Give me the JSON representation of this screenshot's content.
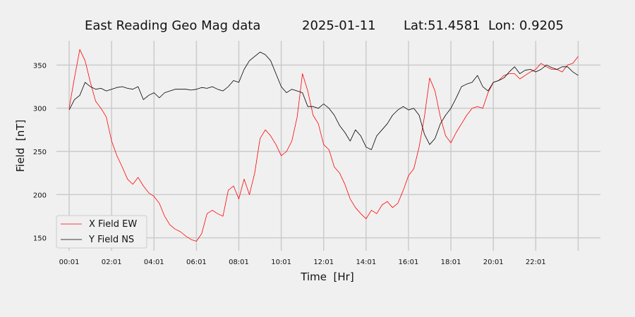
{
  "chart_data": {
    "type": "line",
    "title": "East Reading Geo Mag data",
    "date": "2025-01-11",
    "location": "Lat:51.4581  Lon: 0.9205",
    "xlabel": "Time  [Hr]",
    "ylabel": "Field  [nT]",
    "x_ticks": [
      {
        "label": "00:01",
        "hour": 0
      },
      {
        "label": "02:01",
        "hour": 2
      },
      {
        "label": "04:01",
        "hour": 4
      },
      {
        "label": "06:01",
        "hour": 6
      },
      {
        "label": "08:01",
        "hour": 8
      },
      {
        "label": "10:01",
        "hour": 10
      },
      {
        "label": "12:01",
        "hour": 12
      },
      {
        "label": "14:01",
        "hour": 14
      },
      {
        "label": "16:01",
        "hour": 16
      },
      {
        "label": "18:01",
        "hour": 18
      },
      {
        "label": "20:01",
        "hour": 20
      },
      {
        "label": "22:01",
        "hour": 22
      }
    ],
    "xlim": [
      -0.6,
      25.05
    ],
    "ylim": [
      135,
      378
    ],
    "y_ticks": [
      150,
      200,
      250,
      300,
      350
    ],
    "grid": true,
    "legend_position": "lower-left",
    "x_hours": [
      0,
      0.25,
      0.5,
      0.75,
      1,
      1.25,
      1.5,
      1.75,
      2,
      2.25,
      2.5,
      2.75,
      3,
      3.25,
      3.5,
      3.75,
      4,
      4.25,
      4.5,
      4.75,
      5,
      5.25,
      5.5,
      5.75,
      6,
      6.25,
      6.5,
      6.75,
      7,
      7.25,
      7.5,
      7.75,
      8,
      8.25,
      8.5,
      8.75,
      9,
      9.25,
      9.5,
      9.75,
      10,
      10.25,
      10.5,
      10.75,
      11,
      11.25,
      11.5,
      11.75,
      12,
      12.25,
      12.5,
      12.75,
      13,
      13.25,
      13.5,
      13.75,
      14,
      14.25,
      14.5,
      14.75,
      15,
      15.25,
      15.5,
      15.75,
      16,
      16.25,
      16.5,
      16.75,
      17,
      17.25,
      17.5,
      17.75,
      18,
      18.25,
      18.5,
      18.75,
      19,
      19.25,
      19.5,
      19.75,
      20,
      20.25,
      20.5,
      20.75,
      21,
      21.25,
      21.5,
      21.75,
      22,
      22.25,
      22.5,
      22.75,
      23,
      23.25,
      23.5,
      23.75,
      24
    ],
    "series": [
      {
        "name": "X Field EW",
        "color": "#ff0000",
        "values": [
          300,
          335,
          368,
          355,
          330,
          308,
          300,
          290,
          262,
          245,
          232,
          218,
          212,
          220,
          210,
          202,
          198,
          190,
          175,
          165,
          160,
          157,
          152,
          148,
          146,
          155,
          178,
          182,
          178,
          175,
          205,
          210,
          195,
          218,
          200,
          225,
          265,
          275,
          268,
          258,
          245,
          250,
          262,
          290,
          340,
          320,
          292,
          282,
          258,
          252,
          232,
          225,
          212,
          195,
          185,
          178,
          172,
          182,
          178,
          188,
          192,
          185,
          190,
          205,
          222,
          230,
          255,
          290,
          335,
          320,
          290,
          268,
          260,
          272,
          282,
          292,
          300,
          302,
          300,
          318,
          330,
          332,
          338,
          340,
          340,
          334,
          338,
          342,
          345,
          352,
          348,
          345,
          345,
          342,
          350,
          352,
          360
        ]
      },
      {
        "name": "Y Field NS",
        "color": "#000000",
        "values": [
          298,
          310,
          315,
          330,
          325,
          322,
          323,
          320,
          322,
          324,
          325,
          323,
          322,
          325,
          310,
          315,
          318,
          312,
          318,
          320,
          322,
          322,
          322,
          321,
          322,
          324,
          323,
          325,
          322,
          320,
          325,
          332,
          330,
          345,
          355,
          360,
          365,
          362,
          355,
          340,
          325,
          318,
          322,
          320,
          318,
          302,
          302,
          300,
          305,
          300,
          292,
          280,
          272,
          262,
          275,
          268,
          255,
          252,
          268,
          275,
          282,
          292,
          298,
          302,
          298,
          300,
          292,
          270,
          258,
          265,
          282,
          292,
          300,
          312,
          325,
          328,
          330,
          338,
          325,
          320,
          330,
          332,
          335,
          342,
          348,
          340,
          344,
          345,
          342,
          345,
          350,
          347,
          345,
          348,
          348,
          342,
          338
        ]
      }
    ]
  }
}
